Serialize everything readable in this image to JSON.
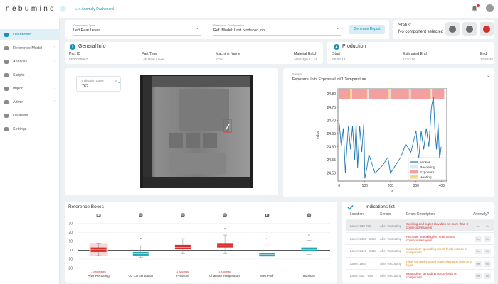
{
  "app": {
    "logo": "nebumind",
    "collapse_glyph": "‹",
    "breadcrumb": "⌂ > Anomaly Dashboard"
  },
  "sidebar": {
    "items": [
      {
        "label": "Dashboard",
        "icon": "dashboard-icon",
        "active": true,
        "has_children": false
      },
      {
        "label": "Reference Model",
        "icon": "reference-icon",
        "active": false,
        "has_children": true
      },
      {
        "label": "Analysis",
        "icon": "analysis-icon",
        "active": false,
        "has_children": true
      },
      {
        "label": "Scripts",
        "icon": "scripts-icon",
        "active": false,
        "has_children": false
      },
      {
        "label": "Import",
        "icon": "import-icon",
        "active": false,
        "has_children": true
      },
      {
        "label": "Admin",
        "icon": "admin-icon",
        "active": false,
        "has_children": true
      },
      {
        "label": "Datasets",
        "icon": "datasets-icon",
        "active": false,
        "has_children": false
      },
      {
        "label": "Settings",
        "icon": "settings-icon",
        "active": false,
        "has_children": false
      }
    ]
  },
  "controls": {
    "component_type": {
      "caption": "Component Type",
      "value": "Left Rear Lever"
    },
    "reference": {
      "caption": "Reference Configuration",
      "value": "Ref. Model: Last produced job"
    },
    "generate_label": "Generate Report",
    "chevron": "⌄"
  },
  "status": {
    "title": "Status:",
    "text": "No component selected",
    "buttons": [
      {
        "name": "status-grey-1",
        "color": "#6d6d6d"
      },
      {
        "name": "status-grey-2",
        "color": "#6d6d6d"
      },
      {
        "name": "status-red",
        "color": "#d32f2f"
      }
    ]
  },
  "general_info": {
    "title": "General Info",
    "icon_glyph": "i",
    "fields": [
      {
        "caption": "Part ID",
        "value": "5E30259967"
      },
      {
        "caption": "Part Type",
        "value": "Left Rear Lever"
      },
      {
        "caption": "Machine Name",
        "value": "EOS"
      },
      {
        "caption": "Material Batch",
        "value": "AlSi7Mg0.6 - 14"
      }
    ]
  },
  "production": {
    "title": "Production",
    "icon_glyph": "▲",
    "fields": [
      {
        "caption": "Start",
        "value": "08-03-13"
      },
      {
        "caption": "Estimated End",
        "value": "17:53:06"
      },
      {
        "caption": "End",
        "value": "17:53:46"
      }
    ]
  },
  "indication_layer": {
    "caption": "Indication Layer",
    "value": "762",
    "spin_glyph": "⌃⌄"
  },
  "sensor": {
    "caption": "Sensor",
    "value": "ExposureUnits.ExposureUnit1.Temperature",
    "chevron": "⌄"
  },
  "chart_data": [
    {
      "type": "line",
      "title": "",
      "xlabel": "s",
      "ylabel": "value",
      "xlim": [
        -5,
        420
      ],
      "ylim": [
        24.47,
        24.82
      ],
      "xticks": [
        0,
        100,
        200,
        300,
        400
      ],
      "yticks": [
        24.5,
        24.55,
        24.6,
        24.65,
        24.7,
        24.75,
        24.8
      ],
      "band_range": [
        24.78,
        24.82
      ],
      "x": [
        0,
        8,
        16,
        24,
        30,
        36,
        44,
        52,
        60,
        66,
        72,
        80,
        88,
        96,
        100,
        108,
        116,
        140,
        170,
        190,
        200,
        220,
        240,
        260,
        280,
        300,
        310,
        320,
        330,
        340,
        350,
        360,
        368,
        374,
        380,
        386,
        392,
        398
      ],
      "series": [
        {
          "name": "sensor",
          "color": "#1f77b4",
          "values": [
            24.69,
            24.6,
            24.67,
            24.5,
            24.6,
            24.68,
            24.59,
            24.68,
            24.55,
            24.69,
            24.52,
            24.68,
            24.58,
            24.69,
            24.48,
            24.52,
            24.57,
            24.5,
            24.53,
            24.56,
            24.5,
            24.53,
            24.56,
            24.61,
            24.58,
            24.66,
            24.55,
            24.66,
            24.59,
            24.67,
            24.6,
            24.75,
            24.79,
            24.66,
            24.59,
            24.69,
            24.55,
            24.6
          ]
        }
      ],
      "legend": [
        {
          "label": "sensor",
          "color": "#1f77b4",
          "kind": "line"
        },
        {
          "label": "Recoating",
          "color": "#d6eaf8",
          "kind": "patch"
        },
        {
          "label": "Exposure",
          "color": "#f4a0a0",
          "kind": "patch"
        },
        {
          "label": "Heating",
          "color": "#f5d58a",
          "kind": "patch"
        }
      ],
      "legend_placement": "lower-right",
      "bands": [
        {
          "kind": "Exposure",
          "from": 0,
          "to": 410
        },
        {
          "kind": "Heating",
          "from": 42,
          "to": 46
        },
        {
          "kind": "Recoating",
          "from": 46,
          "to": 50
        },
        {
          "kind": "Heating",
          "from": 108,
          "to": 112
        },
        {
          "kind": "Recoating",
          "from": 112,
          "to": 116
        },
        {
          "kind": "Heating",
          "from": 192,
          "to": 196
        },
        {
          "kind": "Recoating",
          "from": 196,
          "to": 200
        },
        {
          "kind": "Heating",
          "from": 272,
          "to": 276
        },
        {
          "kind": "Recoating",
          "from": 276,
          "to": 280
        },
        {
          "kind": "Heating",
          "from": 354,
          "to": 358
        },
        {
          "kind": "Recoating",
          "from": 358,
          "to": 362
        }
      ]
    },
    {
      "type": "box",
      "title": "Reference Boxes",
      "ylim": [
        -22,
        33
      ],
      "yticks": [
        30,
        20,
        10,
        0,
        -10,
        -20
      ],
      "categories": [
        "After Recoating",
        "O2 Concentration",
        "Pressure",
        "Chamber Temperature",
        "Melt Pool",
        "Humidity"
      ],
      "annotations": [
        "3 Anomalies",
        "",
        "1 Anomaly",
        "1 Anomaly",
        "",
        ""
      ],
      "icons": [
        "camera-icon",
        "sensor-icon",
        "sensor-icon",
        "sensor-icon",
        "camera-icon",
        "sensor-icon"
      ],
      "colors": [
        "#d32f2f",
        "#26a6b0",
        "#d32f2f",
        "#d32f2f",
        "#26a6b0",
        "#26a6b0"
      ],
      "boxes": [
        {
          "whisker_low": -6,
          "q1": -2,
          "median": 1,
          "q3": 3,
          "whisker_high": 8,
          "outlier": null
        },
        {
          "whisker_low": -8,
          "q1": -6,
          "median": -4,
          "q3": -2,
          "whisker_high": 5,
          "outlier": 13
        },
        {
          "whisker_low": -4,
          "q1": 1,
          "median": 3,
          "q3": 6,
          "whisker_high": 13,
          "outlier": null
        },
        {
          "whisker_low": -4,
          "q1": 3,
          "median": 5,
          "q3": 8,
          "whisker_high": 17,
          "outlier": 24
        },
        {
          "whisker_low": -9,
          "q1": -7,
          "median": -5,
          "q3": -3,
          "whisker_high": 5,
          "outlier": 13
        },
        {
          "whisker_low": -5,
          "q1": -1,
          "median": 1,
          "q3": 3,
          "whisker_high": 11,
          "outlier": 17
        }
      ],
      "anomaly_window": {
        "category": "After Recoating",
        "from": -6,
        "to": 8
      }
    }
  ],
  "indications": {
    "title": "Indications list",
    "headers": [
      "Location",
      "Sensor",
      "Errors Description",
      "Anomaly?"
    ],
    "yes_label": "Yes",
    "no_label": "No",
    "rows": [
      {
        "location": "Layer: 738-762",
        "sensor": "After Recoating",
        "error": "Swelling and super-elevation on more than 3 consecutive layers",
        "error_color": "#d32f2f"
      },
      {
        "location": "Layer: 2450 - 2454",
        "sensor": "After Recoating",
        "error": "Recoater streaking for more than 5 consecutive layers",
        "error_color": "#d32f2f"
      },
      {
        "location": "Layer: 2445 - 2448",
        "sensor": "After Recoating",
        "error": "Incomplete spreading (short-feed) outside of component",
        "error_color": "#e08a1e"
      },
      {
        "location": "Layer: 1654",
        "sensor": "After Recoating",
        "error": "Hints for swelling and super-elevation only on 1 layer",
        "error_color": "#e08a1e"
      },
      {
        "location": "Layer: 652 - 656",
        "sensor": "After Recoating",
        "error": "Incomplete spreading (short-feed) on component",
        "error_color": "#d32f2f"
      }
    ]
  }
}
